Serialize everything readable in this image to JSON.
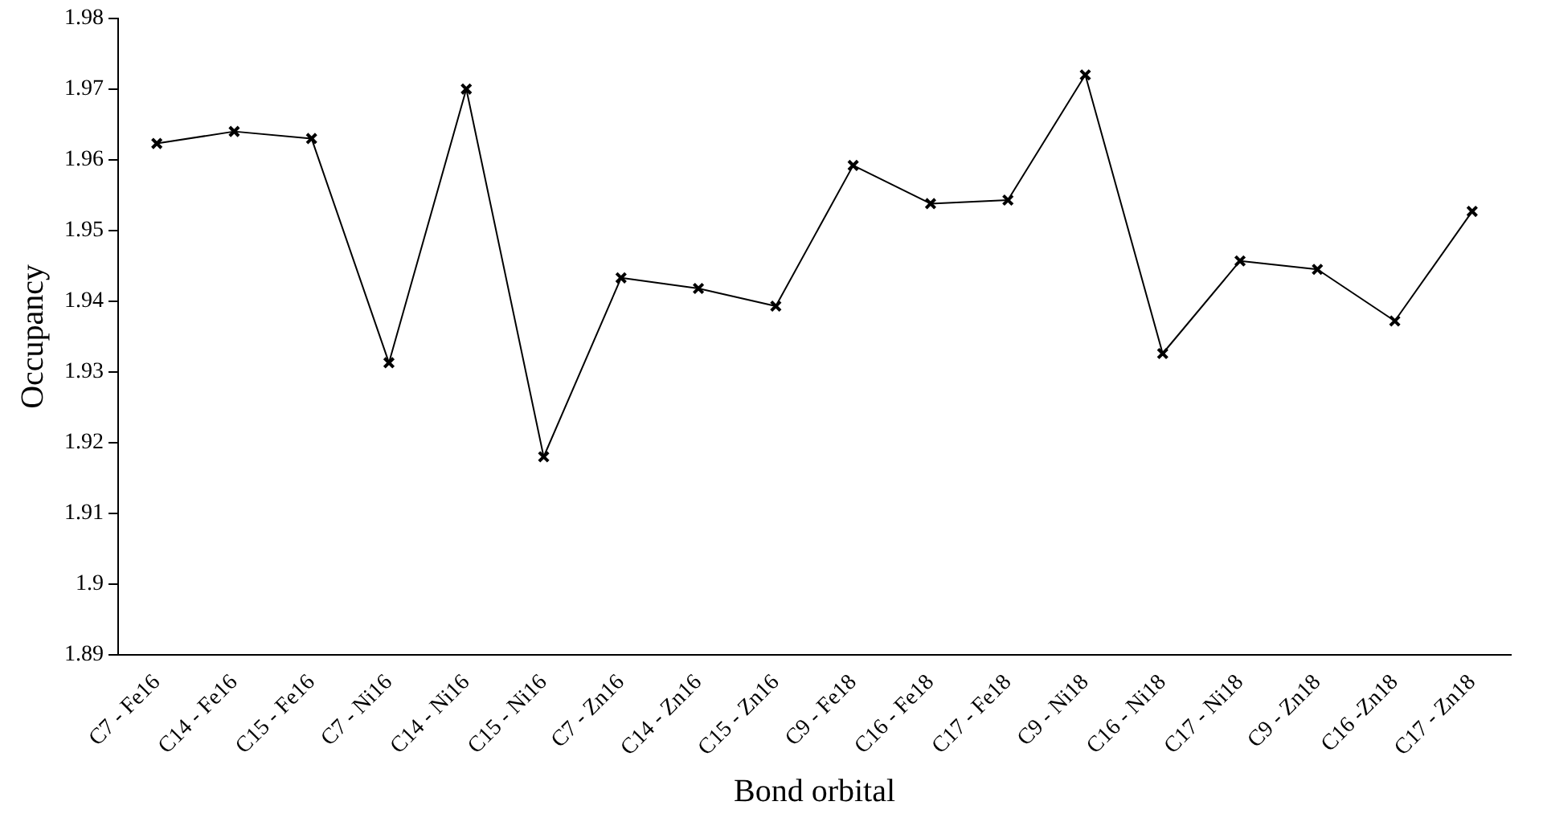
{
  "chart_data": {
    "type": "line",
    "xlabel": "Bond orbital",
    "ylabel": "Occupancy",
    "categories": [
      "C7 - Fe16",
      "C14 - Fe16",
      "C15 - Fe16",
      "C7 - Ni16",
      "C14 - Ni16",
      "C15 - Ni16",
      "C7 - Zn16",
      "C14 - Zn16",
      "C15 - Zn16",
      "C9 - Fe18",
      "C16 - Fe18",
      "C17 - Fe18",
      "C9 - Ni18",
      "C16 - Ni18",
      "C17 - Ni18",
      "C9 - Zn18",
      "C16 -Zn18",
      "C17 - Zn18"
    ],
    "series": [
      {
        "color": "#000000",
        "values": [
          1.9623,
          1.964,
          1.963,
          1.9313,
          1.97,
          1.918,
          1.9433,
          1.9418,
          1.9393,
          1.9592,
          1.9538,
          1.9543,
          1.972,
          1.9326,
          1.9457,
          1.9445,
          1.9372,
          1.9527
        ]
      }
    ],
    "ylim": [
      1.89,
      1.98
    ],
    "yticks": [
      1.89,
      1.9,
      1.91,
      1.92,
      1.93,
      1.94,
      1.95,
      1.96,
      1.97,
      1.98
    ],
    "grid": false,
    "legend": false,
    "marker": "cross",
    "line_style": "solid"
  }
}
